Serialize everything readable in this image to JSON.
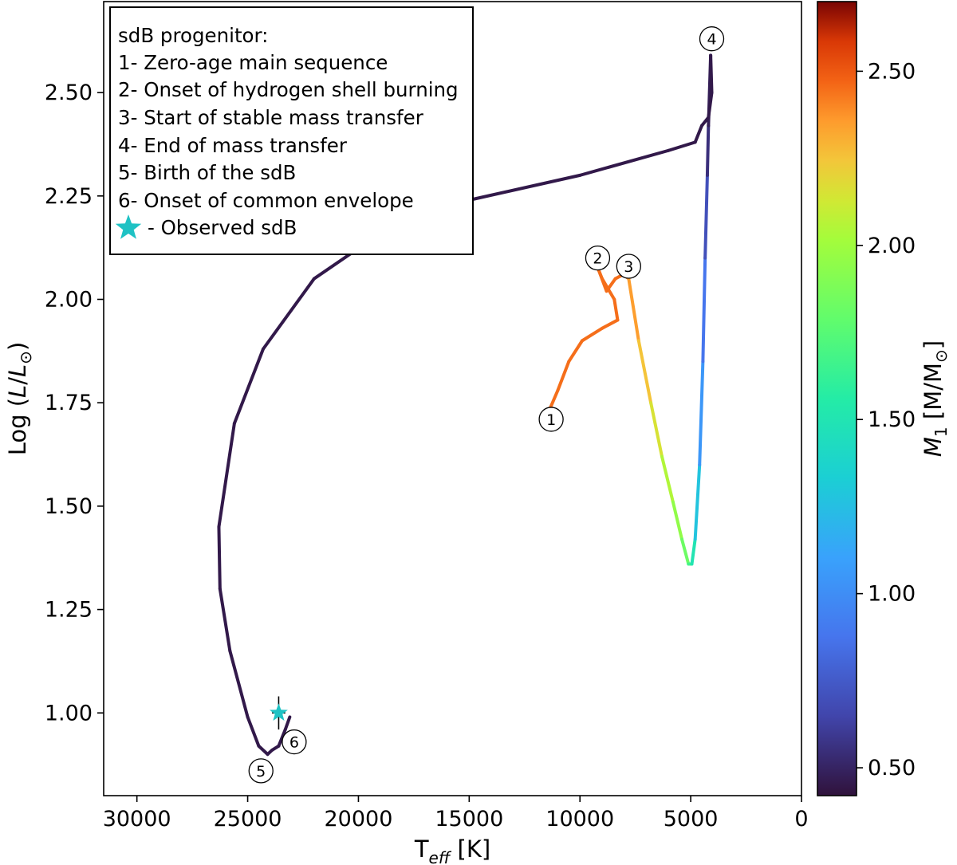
{
  "chart_data": {
    "type": "line",
    "xlabel": "T_eff [K]",
    "xlabel_parts": {
      "base": "T",
      "sub": "eff",
      "unit": " [K]"
    },
    "ylabel": "Log (L/L⊙)",
    "ylabel_parts": {
      "pre": "Log (",
      "L": "L",
      "slash": "/",
      "Lsun": "L",
      "sun_sub": "⊙",
      "post": ")"
    },
    "xlim": [
      31500,
      0
    ],
    "ylim": [
      0.8,
      2.72
    ],
    "x_ticks": [
      30000,
      25000,
      20000,
      15000,
      10000,
      5000,
      0
    ],
    "x_tick_labels": [
      "30000",
      "25000",
      "20000",
      "15000",
      "10000",
      "5000",
      "0"
    ],
    "y_ticks": [
      1.0,
      1.25,
      1.5,
      1.75,
      2.0,
      2.25,
      2.5
    ],
    "y_tick_labels": [
      "1.00",
      "1.25",
      "1.50",
      "1.75",
      "2.00",
      "2.25",
      "2.50"
    ],
    "grid": false,
    "legend_position": "top-left",
    "legend": {
      "title": "sdB progenitor:",
      "entries": [
        "1- Zero-age main sequence",
        "2- Onset of hydrogen shell burning",
        "3- Start of stable mass transfer",
        "4- End of mass transfer",
        "5- Birth of the sdB",
        "6- Onset of common envelope"
      ],
      "star_entry": "- Observed sdB"
    },
    "colorbar": {
      "label": "M_1 [M/M⊙]",
      "label_parts": {
        "M": "M",
        "sub": "1",
        "rest": " [M/M",
        "sun": "⊙",
        "close": "]"
      },
      "range": [
        0.42,
        2.7
      ],
      "ticks": [
        0.5,
        1.0,
        1.5,
        2.0,
        2.5
      ],
      "tick_labels": [
        "0.50",
        "1.00",
        "1.50",
        "2.00",
        "2.50"
      ],
      "colormap": "turbo"
    },
    "track": [
      {
        "teff": 11400,
        "logL": 1.73,
        "m1": 2.45
      },
      {
        "teff": 11000,
        "logL": 1.78,
        "m1": 2.45
      },
      {
        "teff": 10500,
        "logL": 1.85,
        "m1": 2.45
      },
      {
        "teff": 9900,
        "logL": 1.9,
        "m1": 2.45
      },
      {
        "teff": 9000,
        "logL": 1.93,
        "m1": 2.45
      },
      {
        "teff": 8300,
        "logL": 1.95,
        "m1": 2.45
      },
      {
        "teff": 8450,
        "logL": 2.0,
        "m1": 2.45
      },
      {
        "teff": 9000,
        "logL": 2.05,
        "m1": 2.45
      },
      {
        "teff": 9150,
        "logL": 2.07,
        "m1": 2.45
      },
      {
        "teff": 8800,
        "logL": 2.02,
        "m1": 2.45
      },
      {
        "teff": 8400,
        "logL": 2.05,
        "m1": 2.45
      },
      {
        "teff": 8050,
        "logL": 2.06,
        "m1": 2.45
      },
      {
        "teff": 7800,
        "logL": 2.05,
        "m1": 2.4
      },
      {
        "teff": 7350,
        "logL": 1.9,
        "m1": 2.3
      },
      {
        "teff": 6800,
        "logL": 1.75,
        "m1": 2.2
      },
      {
        "teff": 6300,
        "logL": 1.62,
        "m1": 2.1
      },
      {
        "teff": 5800,
        "logL": 1.51,
        "m1": 2.0
      },
      {
        "teff": 5400,
        "logL": 1.42,
        "m1": 1.9
      },
      {
        "teff": 5100,
        "logL": 1.36,
        "m1": 1.75
      },
      {
        "teff": 4950,
        "logL": 1.36,
        "m1": 1.6
      },
      {
        "teff": 4800,
        "logL": 1.42,
        "m1": 1.4
      },
      {
        "teff": 4600,
        "logL": 1.6,
        "m1": 1.15
      },
      {
        "teff": 4450,
        "logL": 1.85,
        "m1": 0.95
      },
      {
        "teff": 4350,
        "logL": 2.1,
        "m1": 0.8
      },
      {
        "teff": 4250,
        "logL": 2.3,
        "m1": 0.6
      },
      {
        "teff": 4200,
        "logL": 2.42,
        "m1": 0.5
      },
      {
        "teff": 4100,
        "logL": 2.59,
        "m1": 0.45
      },
      {
        "teff": 4050,
        "logL": 2.5,
        "m1": 0.45
      },
      {
        "teff": 4200,
        "logL": 2.44,
        "m1": 0.45
      },
      {
        "teff": 4500,
        "logL": 2.42,
        "m1": 0.45
      },
      {
        "teff": 4800,
        "logL": 2.38,
        "m1": 0.45
      },
      {
        "teff": 6000,
        "logL": 2.36,
        "m1": 0.45
      },
      {
        "teff": 10000,
        "logL": 2.3,
        "m1": 0.45
      },
      {
        "teff": 15000,
        "logL": 2.24,
        "m1": 0.45
      },
      {
        "teff": 19000,
        "logL": 2.16,
        "m1": 0.45
      },
      {
        "teff": 22000,
        "logL": 2.05,
        "m1": 0.45
      },
      {
        "teff": 24300,
        "logL": 1.88,
        "m1": 0.45
      },
      {
        "teff": 25600,
        "logL": 1.7,
        "m1": 0.45
      },
      {
        "teff": 26300,
        "logL": 1.45,
        "m1": 0.45
      },
      {
        "teff": 26250,
        "logL": 1.3,
        "m1": 0.45
      },
      {
        "teff": 25800,
        "logL": 1.15,
        "m1": 0.45
      },
      {
        "teff": 25000,
        "logL": 0.99,
        "m1": 0.45
      },
      {
        "teff": 24500,
        "logL": 0.92,
        "m1": 0.45
      },
      {
        "teff": 24100,
        "logL": 0.9,
        "m1": 0.45
      },
      {
        "teff": 23900,
        "logL": 0.91,
        "m1": 0.45
      },
      {
        "teff": 23600,
        "logL": 0.92,
        "m1": 0.45
      },
      {
        "teff": 23300,
        "logL": 0.96,
        "m1": 0.45
      },
      {
        "teff": 23100,
        "logL": 0.99,
        "m1": 0.45
      }
    ],
    "markers": [
      {
        "label": "1",
        "teff": 11300,
        "logL": 1.71
      },
      {
        "label": "2",
        "teff": 9200,
        "logL": 2.1
      },
      {
        "label": "3",
        "teff": 7800,
        "logL": 2.08
      },
      {
        "label": "4",
        "teff": 4050,
        "logL": 2.63
      },
      {
        "label": "5",
        "teff": 24400,
        "logL": 0.86
      },
      {
        "label": "6",
        "teff": 22900,
        "logL": 0.93
      }
    ],
    "observed_sdb": {
      "teff": 23600,
      "logL": 1.0,
      "logL_err": 0.04,
      "teff_err": 300,
      "color": "#1fc2c4"
    }
  }
}
